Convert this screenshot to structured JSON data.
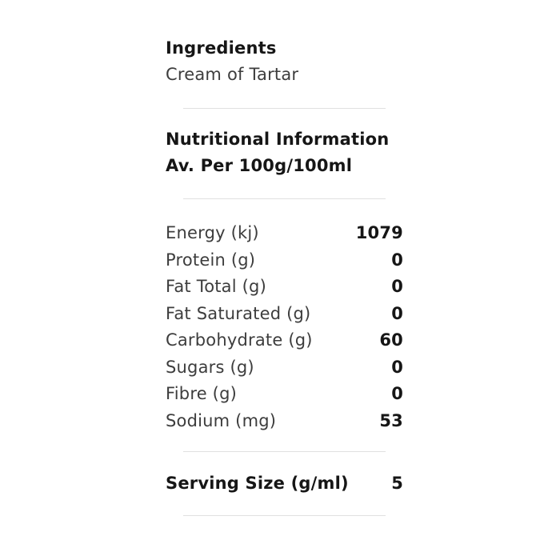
{
  "ingredients": {
    "title": "Ingredients",
    "value": "Cream of Tartar"
  },
  "nutrition": {
    "title": "Nutritional Information",
    "subtitle": "Av. Per 100g/100ml",
    "rows": [
      {
        "label": "Energy (kj)",
        "value": "1079"
      },
      {
        "label": "Protein (g)",
        "value": "0"
      },
      {
        "label": "Fat Total (g)",
        "value": "0"
      },
      {
        "label": "Fat Saturated (g)",
        "value": "0"
      },
      {
        "label": "Carbohydrate (g)",
        "value": "60"
      },
      {
        "label": "Sugars (g)",
        "value": "0"
      },
      {
        "label": "Fibre (g)",
        "value": "0"
      },
      {
        "label": "Sodium (mg)",
        "value": "53"
      }
    ],
    "serving": {
      "label": "Serving Size (g/ml)",
      "value": "5"
    }
  },
  "colors": {
    "background": "#ffffff",
    "heading_text": "#161616",
    "body_text": "#3d3d3d",
    "divider": "#e0e0e0"
  }
}
